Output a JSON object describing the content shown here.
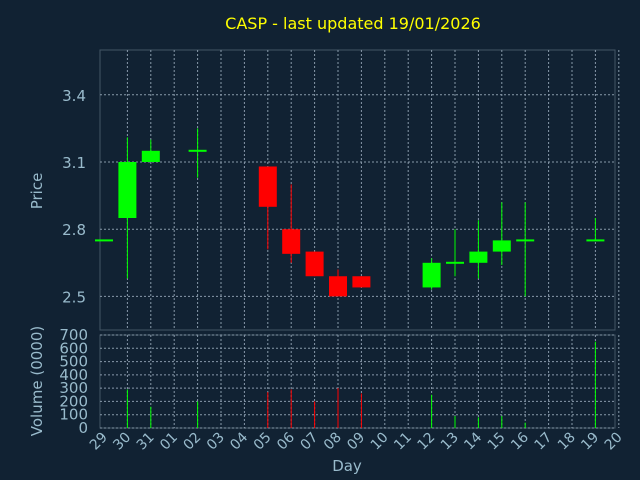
{
  "chart_data": {
    "type": "candlestick",
    "title": "CASP - last updated 19/01/2026",
    "xlabel": "Day",
    "price": {
      "ylabel": "Price",
      "ylim": [
        2.35,
        3.6
      ],
      "yticks": [
        "2.5",
        "2.8",
        "3.1",
        "3.4"
      ],
      "ytick_values": [
        2.5,
        2.8,
        3.1,
        3.4
      ]
    },
    "volume": {
      "ylabel": "Volume (0000)",
      "ylim": [
        0,
        700
      ],
      "yticks": [
        "0",
        "100",
        "200",
        "300",
        "400",
        "500",
        "600",
        "700"
      ],
      "ytick_values": [
        0,
        100,
        200,
        300,
        400,
        500,
        600,
        700
      ]
    },
    "x_tick_labels": [
      "29",
      "30",
      "31",
      "01",
      "02",
      "03",
      "04",
      "05",
      "06",
      "07",
      "08",
      "09",
      "10",
      "11",
      "12",
      "13",
      "14",
      "15",
      "16",
      "17",
      "18",
      "19",
      "20"
    ],
    "candles": [
      {
        "day": "29",
        "open": 2.75,
        "high": 2.75,
        "low": 2.75,
        "close": 2.75,
        "volume": 0
      },
      {
        "day": "30",
        "open": 2.85,
        "high": 3.21,
        "low": 2.58,
        "close": 3.1,
        "volume": 290
      },
      {
        "day": "31",
        "open": 3.1,
        "high": 3.2,
        "low": 3.1,
        "close": 3.15,
        "volume": 160
      },
      {
        "day": "02",
        "open": 3.15,
        "high": 3.25,
        "low": 3.03,
        "close": 3.15,
        "volume": 200
      },
      {
        "day": "05",
        "open": 3.08,
        "high": 3.08,
        "low": 2.71,
        "close": 2.9,
        "volume": 270
      },
      {
        "day": "06",
        "open": 2.8,
        "high": 3.0,
        "low": 2.65,
        "close": 2.69,
        "volume": 290
      },
      {
        "day": "07",
        "open": 2.7,
        "high": 2.7,
        "low": 2.59,
        "close": 2.59,
        "volume": 200
      },
      {
        "day": "08",
        "open": 2.59,
        "high": 2.62,
        "low": 2.5,
        "close": 2.5,
        "volume": 300
      },
      {
        "day": "09",
        "open": 2.59,
        "high": 2.59,
        "low": 2.54,
        "close": 2.54,
        "volume": 260
      },
      {
        "day": "12",
        "open": 2.54,
        "high": 2.67,
        "low": 2.53,
        "close": 2.65,
        "volume": 250
      },
      {
        "day": "13",
        "open": 2.65,
        "high": 2.8,
        "low": 2.59,
        "close": 2.65,
        "volume": 90
      },
      {
        "day": "14",
        "open": 2.65,
        "high": 2.84,
        "low": 2.58,
        "close": 2.7,
        "volume": 80
      },
      {
        "day": "15",
        "open": 2.7,
        "high": 2.92,
        "low": 2.64,
        "close": 2.75,
        "volume": 90
      },
      {
        "day": "16",
        "open": 2.75,
        "high": 2.92,
        "low": 2.5,
        "close": 2.75,
        "volume": 40
      },
      {
        "day": "19",
        "open": 2.75,
        "high": 2.85,
        "low": 2.75,
        "close": 2.75,
        "volume": 650
      }
    ],
    "colors": {
      "background": "#112233",
      "grid": "#8899aa",
      "up": "#00ff00",
      "down": "#ff0000",
      "title": "#ffff00",
      "axis_text": "#99bbcc"
    },
    "grid": true
  }
}
